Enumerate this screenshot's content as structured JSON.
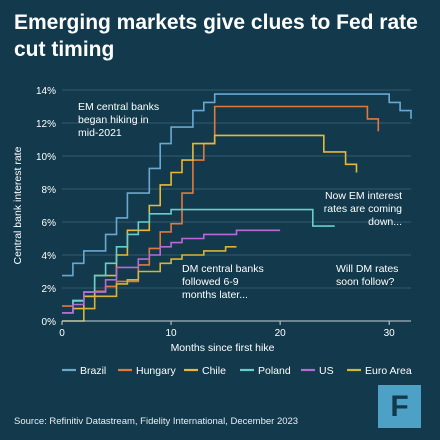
{
  "title": "Emerging markets give clues to Fed rate cut timing",
  "source": "Source: Refinitiv Datastream, Fidelity International, December 2023",
  "logo": {
    "letter": "F",
    "icon": "fidelity-logo-icon",
    "color": "#4da0c6"
  },
  "colors": {
    "background": "#133a4c",
    "text": "#ffffff"
  },
  "chart_data": {
    "type": "line",
    "step": true,
    "title": "",
    "xlabel": "Months since first hike",
    "ylabel": "Central bank interest rate",
    "xlim": [
      0,
      32
    ],
    "ylim": [
      0,
      14
    ],
    "xticks": [
      0,
      10,
      20,
      30
    ],
    "yticks": [
      0,
      2,
      4,
      6,
      8,
      10,
      12,
      14
    ],
    "ytick_labels": [
      "0%",
      "2%",
      "4%",
      "6%",
      "8%",
      "10%",
      "12%",
      "14%"
    ],
    "grid": "horizontal",
    "legend": "bottom",
    "series": [
      {
        "name": "Brazil",
        "color": "#6aa8d2",
        "x": [
          0,
          1,
          2,
          3,
          4,
          5,
          6,
          7,
          8,
          9,
          10,
          11,
          12,
          13,
          14,
          15,
          16,
          30,
          31,
          32
        ],
        "y": [
          2.75,
          3.5,
          4.25,
          4.25,
          5.25,
          6.25,
          7.75,
          7.75,
          9.25,
          10.75,
          11.75,
          11.75,
          12.75,
          13.25,
          13.75,
          13.75,
          13.75,
          13.25,
          12.75,
          12.25
        ]
      },
      {
        "name": "Hungary",
        "color": "#e07a3c",
        "x": [
          0,
          1,
          2,
          3,
          4,
          5,
          6,
          7,
          8,
          9,
          10,
          11,
          12,
          13,
          14,
          27,
          28,
          29
        ],
        "y": [
          0.9,
          1.2,
          1.5,
          1.8,
          2.1,
          2.4,
          2.4,
          3.4,
          4.4,
          5.4,
          5.9,
          7.75,
          9.75,
          10.75,
          13.0,
          13.0,
          12.25,
          11.5
        ]
      },
      {
        "name": "Chile",
        "color": "#e8b83b",
        "x": [
          0,
          1,
          2,
          3,
          4,
          5,
          6,
          7,
          8,
          9,
          10,
          11,
          12,
          13,
          14,
          15,
          22,
          24,
          26,
          27
        ],
        "y": [
          0.5,
          0.75,
          1.5,
          2.75,
          2.75,
          4.0,
          5.5,
          5.5,
          7.0,
          8.25,
          9.0,
          9.75,
          10.75,
          10.75,
          11.25,
          11.25,
          11.25,
          10.25,
          9.5,
          9.0
        ]
      },
      {
        "name": "Poland",
        "color": "#66cfcc",
        "x": [
          0,
          1,
          2,
          3,
          4,
          5,
          6,
          7,
          8,
          9,
          10,
          11,
          13,
          23,
          24,
          25
        ],
        "y": [
          0.5,
          1.25,
          1.75,
          2.75,
          3.5,
          4.5,
          5.25,
          6.0,
          6.5,
          6.5,
          6.75,
          6.75,
          6.75,
          5.75,
          5.75,
          5.75
        ]
      },
      {
        "name": "US",
        "color": "#b66ad6",
        "x": [
          0,
          1,
          2,
          3,
          4,
          5,
          6,
          7,
          8,
          9,
          10,
          11,
          12,
          13,
          14,
          16,
          17,
          18,
          20
        ],
        "y": [
          0.5,
          1.0,
          1.75,
          1.75,
          2.5,
          3.25,
          3.25,
          3.75,
          4.0,
          4.5,
          4.75,
          5.0,
          5.0,
          5.25,
          5.25,
          5.5,
          5.5,
          5.5,
          5.5
        ]
      },
      {
        "name": "Euro Area",
        "color": "#d6b43a",
        "x": [
          0,
          1,
          2,
          3,
          4,
          5,
          6,
          7,
          8,
          9,
          10,
          11,
          12,
          13,
          14,
          15,
          16
        ],
        "y": [
          0.0,
          0.0,
          0.75,
          1.5,
          1.5,
          2.25,
          2.5,
          3.0,
          3.0,
          3.5,
          3.75,
          4.0,
          4.0,
          4.25,
          4.25,
          4.5,
          4.5
        ]
      }
    ],
    "annotations": [
      {
        "id": "em-hike",
        "lines": [
          "EM central banks",
          "began hiking in",
          "mid-2021"
        ]
      },
      {
        "id": "em-down",
        "lines": [
          "Now EM interest",
          "rates are coming",
          "down..."
        ]
      },
      {
        "id": "dm-follow",
        "lines": [
          "DM central banks",
          "followed 6-9",
          "months later..."
        ]
      },
      {
        "id": "dm-soon",
        "lines": [
          "Will DM rates",
          "soon follow?"
        ]
      }
    ]
  }
}
